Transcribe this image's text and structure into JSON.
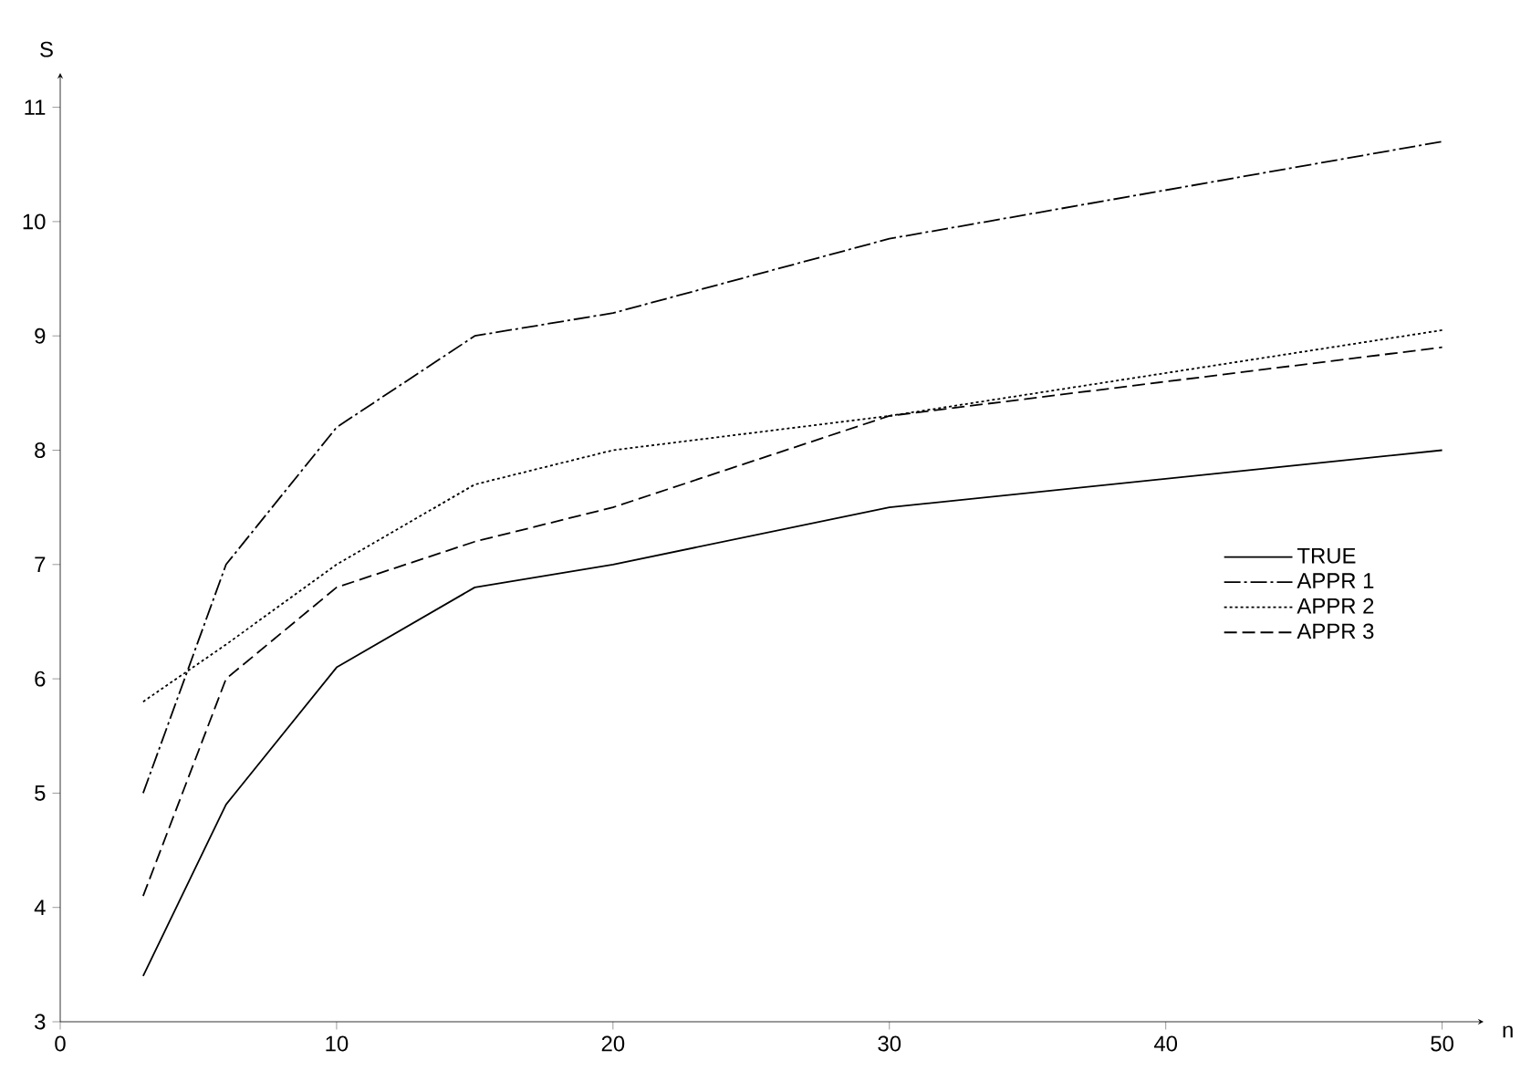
{
  "chart_data": {
    "type": "line",
    "xlabel": "n",
    "ylabel": "S",
    "x": [
      3,
      6,
      10,
      15,
      20,
      30,
      50
    ],
    "series": [
      {
        "name": "TRUE",
        "color": "#000000",
        "line_style": "solid",
        "values": [
          3.4,
          4.9,
          6.1,
          6.8,
          7.0,
          7.5,
          8.0
        ]
      },
      {
        "name": "APPR 1",
        "color": "#000000",
        "line_style": "dashdot",
        "values": [
          5.0,
          7.0,
          8.2,
          9.0,
          9.2,
          9.85,
          10.7
        ]
      },
      {
        "name": "APPR 2",
        "color": "#000000",
        "line_style": "dotted",
        "values": [
          5.8,
          6.3,
          7.0,
          7.7,
          8.0,
          8.3,
          9.05
        ]
      },
      {
        "name": "APPR 3",
        "color": "#000000",
        "line_style": "dashed",
        "values": [
          4.1,
          6.0,
          6.8,
          7.2,
          7.5,
          8.3,
          8.9
        ]
      }
    ],
    "xlim": [
      0,
      51.5
    ],
    "ylim": [
      3,
      11.3
    ],
    "xticks": [
      0,
      10,
      20,
      30,
      40,
      50
    ],
    "yticks": [
      3,
      4,
      5,
      6,
      7,
      8,
      9,
      10,
      11
    ],
    "legend": "right",
    "grid": false,
    "marker": "none"
  }
}
